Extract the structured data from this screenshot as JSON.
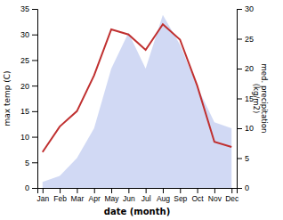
{
  "chart_data": {
    "type": "line",
    "categories": [
      "Jan",
      "Feb",
      "Mar",
      "Apr",
      "May",
      "Jun",
      "Jul",
      "Aug",
      "Sep",
      "Oct",
      "Nov",
      "Dec"
    ],
    "series": [
      {
        "type": "line",
        "color": "#c03030",
        "values": [
          7,
          12,
          15,
          22,
          31,
          30,
          27,
          32,
          29,
          20,
          9,
          8
        ]
      },
      {
        "type": "area",
        "color": "#b8c4ee",
        "axis": "y2",
        "values": [
          1,
          2,
          5,
          10,
          20,
          26,
          20,
          29,
          24,
          17,
          11,
          10
        ]
      }
    ],
    "xlabel": "date (month)",
    "ylabel": "max temp (C)",
    "y2label": "med. precipitation\n(kg/m2)",
    "ylim": [
      0,
      35
    ],
    "yticks": [
      0,
      5,
      10,
      15,
      20,
      25,
      30,
      35
    ],
    "y2lim": [
      0,
      30
    ],
    "y2ticks": [
      0,
      5,
      10,
      15,
      20,
      25,
      30
    ]
  }
}
